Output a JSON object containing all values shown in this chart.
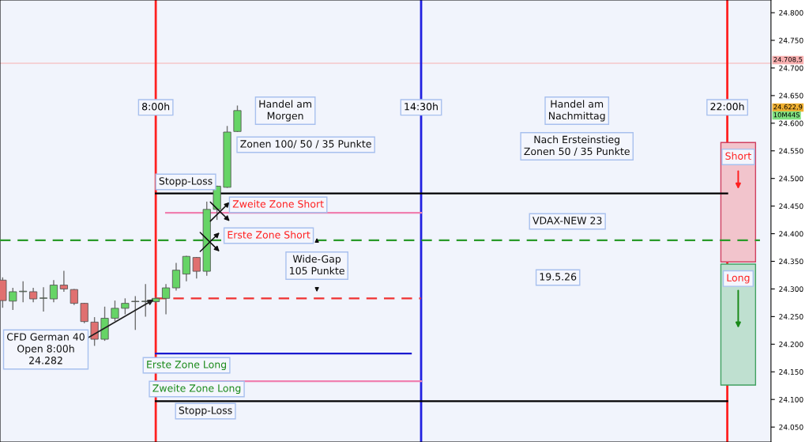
{
  "chart_data": {
    "type": "candlestick",
    "series": [
      {
        "x": [
          4.25,
          4.5,
          4.75,
          5,
          5.25,
          5.5,
          5.75,
          6,
          6.25,
          6.5,
          6.75,
          7,
          7.25,
          7.5,
          7.75,
          8,
          8.25,
          8.5,
          8.75,
          9,
          9.25,
          9.5,
          9.75,
          10
        ],
        "ohlc": [
          [
            24316,
            24320,
            24267,
            24279
          ],
          [
            24278,
            24301,
            24263,
            24295
          ],
          [
            24295,
            24313,
            24277,
            24296
          ],
          [
            24295,
            24301,
            24277,
            24282
          ],
          [
            24283,
            24302,
            24260,
            24283
          ],
          [
            24282,
            24315,
            24277,
            24307
          ],
          [
            24307,
            24332,
            24296,
            24300
          ],
          [
            24299,
            24299,
            24272,
            24274
          ],
          [
            24274,
            24274,
            24239,
            24241
          ],
          [
            24240,
            24248,
            24198,
            24209
          ],
          [
            24209,
            24267,
            24207,
            24247
          ],
          [
            24247,
            24278,
            24243,
            24265
          ],
          [
            24265,
            24282,
            24255,
            24274
          ],
          [
            24277,
            24286,
            24227,
            24277
          ],
          [
            24277,
            24308,
            24251,
            24278
          ],
          [
            24277,
            24285,
            24275,
            24283
          ],
          [
            24283,
            24308,
            24255,
            24302
          ],
          [
            24302,
            24346,
            24298,
            24334
          ],
          [
            24327,
            24359,
            24315,
            24359
          ],
          [
            24357,
            24357,
            24320,
            24332
          ],
          [
            24332,
            24457,
            24325,
            24444
          ],
          [
            24444,
            24486,
            24426,
            24486
          ],
          [
            24484,
            24594,
            24484,
            24584
          ],
          [
            24585,
            24631,
            24585,
            24622.9
          ]
        ],
        "colors": [
          "#e07070",
          "#66d466",
          "#66d466",
          "#e07070",
          "#66d466",
          "#66d466",
          "#e07070",
          "#e07070",
          "#e07070",
          "#e07070",
          "#66d466",
          "#66d466",
          "#66d466",
          "#66d466",
          "#66d466",
          "#66d466",
          "#66d466",
          "#66d466",
          "#66d466",
          "#e07070",
          "#66d466",
          "#66d466",
          "#66d466",
          "#66d466"
        ]
      },
      {
        "type": "line",
        "x": [
          8,
          22
        ],
        "values": [
          24473,
          24473
        ],
        "color": "#000000",
        "line_style": "solid"
      },
      {
        "type": "line",
        "x": [
          8.25,
          14.5
        ],
        "values": [
          24438,
          24438
        ],
        "color": "#f080b0",
        "line_style": "solid"
      },
      {
        "type": "line",
        "x": [
          4.185,
          22.8
        ],
        "values": [
          24388,
          24388
        ],
        "color": "#2a9a2a",
        "line_style": "dashed"
      },
      {
        "type": "line",
        "x": [
          8,
          14.5
        ],
        "values": [
          24283,
          24283
        ],
        "color": "#f03030",
        "line_style": "dashed"
      },
      {
        "type": "line",
        "x": [
          8,
          14.25
        ],
        "values": [
          24183,
          24183
        ],
        "color": "#1a1ad0",
        "line_style": "solid"
      },
      {
        "type": "line",
        "x": [
          8,
          14.5
        ],
        "values": [
          24133,
          24133
        ],
        "color": "#f080b0",
        "line_style": "solid"
      },
      {
        "type": "line",
        "x": [
          8,
          22
        ],
        "values": [
          24097,
          24097
        ],
        "color": "#000000",
        "line_style": "solid"
      }
    ],
    "xlim": [
      4.185,
      23.07
    ],
    "ylim": [
      24023,
      24823
    ],
    "yticks": [
      {
        "value": 24050,
        "label": "24.050"
      },
      {
        "value": 24100,
        "label": "24.100"
      },
      {
        "value": 24150,
        "label": "24.150"
      },
      {
        "value": 24200,
        "label": "24.200"
      },
      {
        "value": 24250,
        "label": "24.250"
      },
      {
        "value": 24300,
        "label": "24.300"
      },
      {
        "value": 24350,
        "label": "24.350"
      },
      {
        "value": 24400,
        "label": "24.400"
      },
      {
        "value": 24450,
        "label": "24.450"
      },
      {
        "value": 24500,
        "label": "24.500"
      },
      {
        "value": 24550,
        "label": "24.550"
      },
      {
        "value": 24600,
        "label": "24.600"
      },
      {
        "value": 24650,
        "label": "24.650"
      },
      {
        "value": 24700,
        "label": "24.700"
      },
      {
        "value": 24750,
        "label": "24.750"
      },
      {
        "value": 24800,
        "label": "24.800"
      }
    ],
    "tick_labels": "y",
    "grid": false,
    "ref_lines": [
      {
        "axis": "x",
        "value": 8,
        "label": "8:00h",
        "color": "#ff2020"
      },
      {
        "axis": "x",
        "value": 14.5,
        "label": "14:30h",
        "color": "#2020e0"
      },
      {
        "axis": "x",
        "value": 22,
        "label": "22:00h",
        "color": "#ff2020"
      },
      {
        "axis": "y",
        "value": 24708.5,
        "label": "24.708,5",
        "color": "#f8b0b0"
      }
    ],
    "bands": [
      {
        "axis": "y",
        "from": 24349,
        "to": 24565,
        "label": "Short",
        "color": "#f2c4cc"
      },
      {
        "axis": "y",
        "from": 24126,
        "to": 24345,
        "label": "Long",
        "color": "#bfe0d0"
      }
    ],
    "annotations": [
      "Handel am\nMorgen",
      "Zonen 100/ 50 / 35 Punkte",
      "Handel am\nNachmittag",
      "Nach Ersteinstieg\nZonen 50 / 35 Punkte",
      "Stopp-Loss",
      "Zweite Zone Short",
      "Erste Zone Short",
      "VDAX-NEW 23",
      "Wide-Gap\n105 Punkte",
      "19.5.26",
      {
        "text": "CFD German 40\nOpen 8:00h\n24.282",
        "x": 8,
        "y": 24283
      },
      "Erste Zone Long",
      "Zweite Zone Long",
      "Stopp-Loss",
      "24.622,9",
      "10M44S"
    ]
  }
}
